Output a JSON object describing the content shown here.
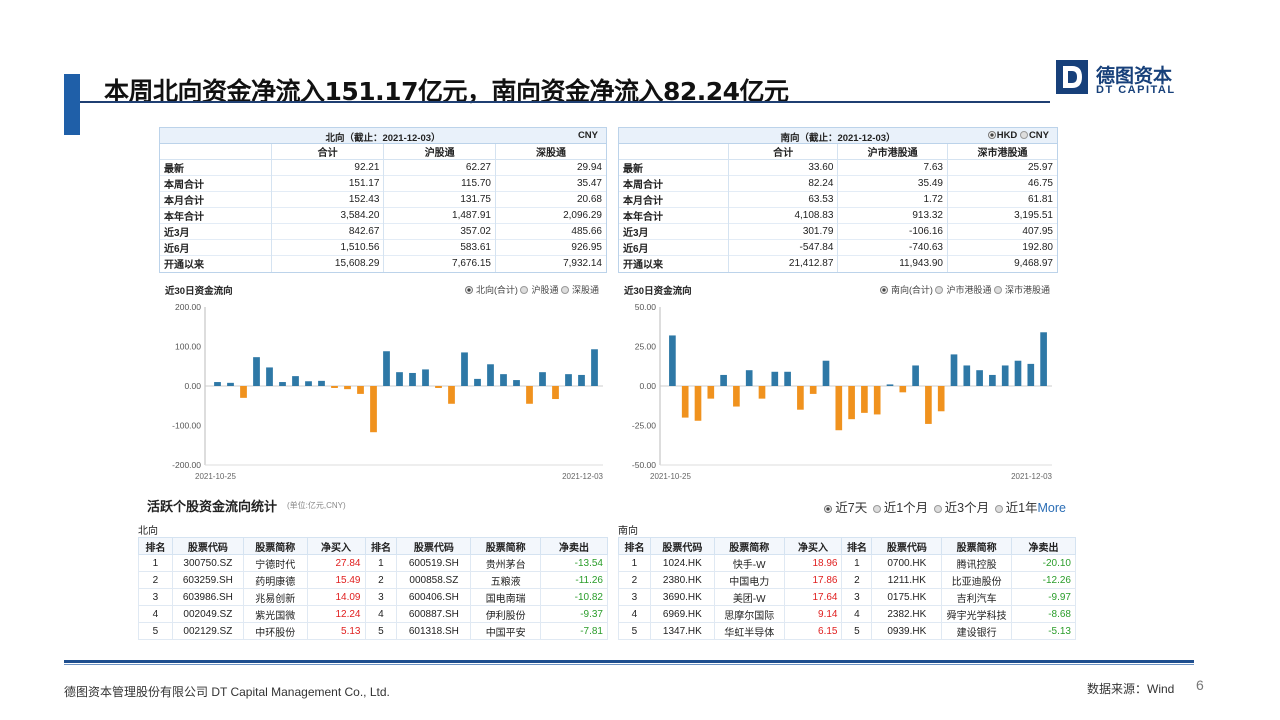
{
  "title": "本周北向资金净流入151.17亿元，南向资金净流入82.24亿元",
  "logo": {
    "cn": "德图资本",
    "en": "DT CAPITAL"
  },
  "north": {
    "header": "北向（截止：2021-12-03）",
    "currency": "CNY",
    "columns": [
      "合计",
      "沪股通",
      "深股通"
    ],
    "rows": [
      {
        "label": "最新",
        "v": [
          "92.21",
          "62.27",
          "29.94"
        ]
      },
      {
        "label": "本周合计",
        "v": [
          "151.17",
          "115.70",
          "35.47"
        ]
      },
      {
        "label": "本月合计",
        "v": [
          "152.43",
          "131.75",
          "20.68"
        ]
      },
      {
        "label": "本年合计",
        "v": [
          "3,584.20",
          "1,487.91",
          "2,096.29"
        ]
      },
      {
        "label": "近3月",
        "v": [
          "842.67",
          "357.02",
          "485.66"
        ]
      },
      {
        "label": "近6月",
        "v": [
          "1,510.56",
          "583.61",
          "926.95"
        ]
      },
      {
        "label": "开通以来",
        "v": [
          "15,608.29",
          "7,676.15",
          "7,932.14"
        ]
      }
    ],
    "chart_title": "近30日资金流向",
    "legend": [
      "北向(合计)",
      "沪股通",
      "深股通"
    ]
  },
  "south": {
    "header": "南向（截止：2021-12-03）",
    "currency_options": [
      "HKD",
      "CNY"
    ],
    "columns": [
      "合计",
      "沪市港股通",
      "深市港股通"
    ],
    "rows": [
      {
        "label": "最新",
        "v": [
          "33.60",
          "7.63",
          "25.97"
        ]
      },
      {
        "label": "本周合计",
        "v": [
          "82.24",
          "35.49",
          "46.75"
        ]
      },
      {
        "label": "本月合计",
        "v": [
          "63.53",
          "1.72",
          "61.81"
        ]
      },
      {
        "label": "本年合计",
        "v": [
          "4,108.83",
          "913.32",
          "3,195.51"
        ]
      },
      {
        "label": "近3月",
        "v": [
          "301.79",
          "-106.16",
          "407.95"
        ]
      },
      {
        "label": "近6月",
        "v": [
          "-547.84",
          "-740.63",
          "192.80"
        ]
      },
      {
        "label": "开通以来",
        "v": [
          "21,412.87",
          "11,943.90",
          "9,468.97"
        ]
      }
    ],
    "chart_title": "近30日资金流向",
    "legend": [
      "南向(合计)",
      "沪市港股通",
      "深市港股通"
    ]
  },
  "chart_data": [
    {
      "type": "bar",
      "x_start": "2021-10-25",
      "x_end": "2021-12-03",
      "ylim": [
        -200,
        200
      ],
      "yticks": [
        "200.00",
        "100.00",
        "0.00",
        "-100.00",
        "-200.00"
      ],
      "series": [
        {
          "name": "北向(合计)",
          "values": [
            10,
            8,
            -30,
            73,
            47,
            10,
            25,
            12,
            13,
            -5,
            -8,
            -20,
            -117,
            88,
            35,
            33,
            42,
            -5,
            -45,
            85,
            18,
            55,
            30,
            15,
            -45,
            35,
            -33,
            30,
            28,
            93
          ]
        }
      ],
      "positive_color": "#2e78a6",
      "negative_color": "#f0921e"
    },
    {
      "type": "bar",
      "x_start": "2021-10-25",
      "x_end": "2021-12-03",
      "ylim": [
        -50,
        50
      ],
      "yticks": [
        "50.00",
        "25.00",
        "0.00",
        "-25.00",
        "-50.00"
      ],
      "series": [
        {
          "name": "南向(合计)",
          "values": [
            32,
            -20,
            -22,
            -8,
            7,
            -13,
            10,
            -8,
            9,
            9,
            -15,
            -5,
            16,
            -28,
            -21,
            -17,
            -18,
            1,
            -4,
            13,
            -24,
            -16,
            20,
            13,
            10,
            7,
            13,
            16,
            14,
            34
          ]
        }
      ],
      "positive_color": "#2e78a6",
      "negative_color": "#f0921e"
    }
  ],
  "active": {
    "title": "活跃个股资金流向统计",
    "unit": "(单位:亿元,CNY)",
    "periods": [
      "近7天",
      "近1个月",
      "近3个月",
      "近1年"
    ],
    "more": "More",
    "north": {
      "group": "北向",
      "headers": [
        "排名",
        "股票代码",
        "股票简称",
        "净买入",
        "排名",
        "股票代码",
        "股票简称",
        "净卖出"
      ],
      "rows": [
        [
          "1",
          "300750.SZ",
          "宁德时代",
          "27.84",
          "1",
          "600519.SH",
          "贵州茅台",
          "-13.54"
        ],
        [
          "2",
          "603259.SH",
          "药明康德",
          "15.49",
          "2",
          "000858.SZ",
          "五粮液",
          "-11.26"
        ],
        [
          "3",
          "603986.SH",
          "兆易创新",
          "14.09",
          "3",
          "600406.SH",
          "国电南瑞",
          "-10.82"
        ],
        [
          "4",
          "002049.SZ",
          "紫光国微",
          "12.24",
          "4",
          "600887.SH",
          "伊利股份",
          "-9.37"
        ],
        [
          "5",
          "002129.SZ",
          "中环股份",
          "5.13",
          "5",
          "601318.SH",
          "中国平安",
          "-7.81"
        ]
      ]
    },
    "south": {
      "group": "南向",
      "headers": [
        "排名",
        "股票代码",
        "股票简称",
        "净买入",
        "排名",
        "股票代码",
        "股票简称",
        "净卖出"
      ],
      "rows": [
        [
          "1",
          "1024.HK",
          "快手-W",
          "18.96",
          "1",
          "0700.HK",
          "腾讯控股",
          "-20.10"
        ],
        [
          "2",
          "2380.HK",
          "中国电力",
          "17.86",
          "2",
          "1211.HK",
          "比亚迪股份",
          "-12.26"
        ],
        [
          "3",
          "3690.HK",
          "美团-W",
          "17.64",
          "3",
          "0175.HK",
          "吉利汽车",
          "-9.97"
        ],
        [
          "4",
          "6969.HK",
          "思摩尔国际",
          "9.14",
          "4",
          "2382.HK",
          "舜宇光学科技",
          "-8.68"
        ],
        [
          "5",
          "1347.HK",
          "华虹半导体",
          "6.15",
          "5",
          "0939.HK",
          "建设银行",
          "-5.13"
        ]
      ]
    }
  },
  "footer": {
    "company": "德图资本管理股份有限公司  DT Capital Management  Co., Ltd.",
    "source": "数据来源：Wind",
    "page": "6"
  }
}
